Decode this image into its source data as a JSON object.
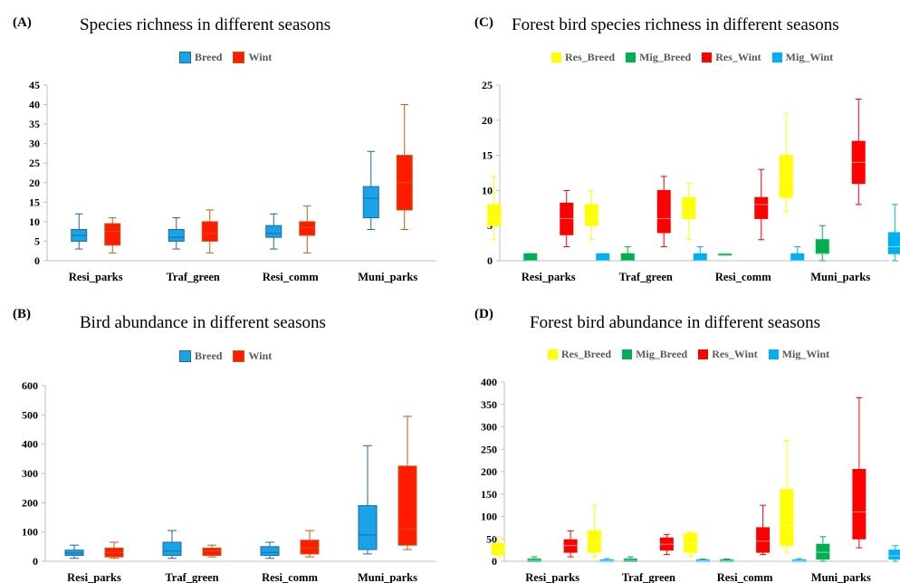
{
  "panels": [
    {
      "letter": "(A)",
      "title": "Species richness in different seasons",
      "legend": [
        {
          "name": "Breed",
          "color": "#1aa3e6"
        },
        {
          "name": "Wint",
          "color": "#ff1a00"
        }
      ]
    },
    {
      "letter": "(C)",
      "title": "Forest bird species richness in different seasons",
      "legend": [
        {
          "name": "Res_Breed",
          "color": "#ffff00"
        },
        {
          "name": "Mig_Breed",
          "color": "#00b050"
        },
        {
          "name": "Res_Wint",
          "color": "#ff0000"
        },
        {
          "name": "Mig_Wint",
          "color": "#00b0f0"
        }
      ]
    },
    {
      "letter": "(B)",
      "title": "Bird abundance in different seasons",
      "legend": [
        {
          "name": "Breed",
          "color": "#1aa3e6"
        },
        {
          "name": "Wint",
          "color": "#ff1a00"
        }
      ]
    },
    {
      "letter": "(D)",
      "title": "Forest bird abundance in different seasons",
      "legend": [
        {
          "name": "Res_Breed",
          "color": "#ffff00"
        },
        {
          "name": "Mig_Breed",
          "color": "#00b050"
        },
        {
          "name": "Res_Wint",
          "color": "#ff0000"
        },
        {
          "name": "Mig_Wint",
          "color": "#00b0f0"
        }
      ]
    }
  ],
  "chart_data": [
    {
      "type": "boxplot",
      "title": "Species richness in different seasons",
      "categories": [
        "Resi_parks",
        "Traf_green",
        "Resi_comm",
        "Muni_parks"
      ],
      "ylim": [
        0,
        45
      ],
      "yticks": [
        0,
        5,
        10,
        15,
        20,
        25,
        30,
        35,
        40,
        45
      ],
      "grid": false,
      "legend_position": "top-center",
      "series": [
        {
          "name": "Breed",
          "color": "#1aa3e6",
          "edge": "#1a6aa8",
          "boxes": [
            {
              "min": 3,
              "q1": 5,
              "median": 6.5,
              "q3": 8,
              "max": 12
            },
            {
              "min": 3,
              "q1": 5,
              "median": 6,
              "q3": 8,
              "max": 11
            },
            {
              "min": 3,
              "q1": 6,
              "median": 7,
              "q3": 9,
              "max": 12
            },
            {
              "min": 8,
              "q1": 11,
              "median": 16,
              "q3": 19,
              "max": 28
            }
          ]
        },
        {
          "name": "Wint",
          "color": "#ff1a00",
          "edge": "#c55a11",
          "boxes": [
            {
              "min": 2,
              "q1": 4,
              "median": 7.5,
              "q3": 9.5,
              "max": 11
            },
            {
              "min": 2,
              "q1": 5,
              "median": 7,
              "q3": 10,
              "max": 13
            },
            {
              "min": 2,
              "q1": 6.5,
              "median": 8.5,
              "q3": 10,
              "max": 14
            },
            {
              "min": 8,
              "q1": 13,
              "median": 20,
              "q3": 27,
              "max": 40
            }
          ]
        }
      ]
    },
    {
      "type": "boxplot",
      "title": "Forest bird species richness in different seasons",
      "categories": [
        "Resi_parks",
        "Traf_green",
        "Resi_comm",
        "Muni_parks"
      ],
      "ylim": [
        0,
        25
      ],
      "yticks": [
        0,
        5,
        10,
        15,
        20,
        25
      ],
      "grid": false,
      "legend_position": "top-center",
      "series": [
        {
          "name": "Res_Breed",
          "color": "#ffff00",
          "edge": "#ffff00",
          "boxes": [
            {
              "min": 3,
              "q1": 5,
              "median": 6,
              "q3": 8,
              "max": 12
            },
            {
              "min": 3,
              "q1": 5,
              "median": 6,
              "q3": 8,
              "max": 10
            },
            {
              "min": 3,
              "q1": 6,
              "median": 7,
              "q3": 9,
              "max": 11
            },
            {
              "min": 7,
              "q1": 9,
              "median": 12,
              "q3": 15,
              "max": 21
            }
          ]
        },
        {
          "name": "Mig_Breed",
          "color": "#00b050",
          "edge": "#00b050",
          "boxes": [
            {
              "min": 0,
              "q1": 0,
              "median": 0,
              "q3": 1,
              "max": 1
            },
            {
              "min": 0,
              "q1": 0,
              "median": 0,
              "q3": 1,
              "max": 2
            },
            {
              "min": 1,
              "q1": 1,
              "median": 1,
              "q3": 1,
              "max": 1
            },
            {
              "min": 0,
              "q1": 1,
              "median": 1,
              "q3": 3,
              "max": 5
            }
          ]
        },
        {
          "name": "Res_Wint",
          "color": "#ff0000",
          "edge": "#ff0000",
          "boxes": [
            {
              "min": 2,
              "q1": 3.7,
              "median": 6,
              "q3": 8.2,
              "max": 10
            },
            {
              "min": 2,
              "q1": 4,
              "median": 6,
              "q3": 10,
              "max": 12
            },
            {
              "min": 3,
              "q1": 6,
              "median": 8,
              "q3": 9,
              "max": 13
            },
            {
              "min": 8,
              "q1": 11,
              "median": 14,
              "q3": 17,
              "max": 23
            }
          ]
        },
        {
          "name": "Mig_Wint",
          "color": "#00b0f0",
          "edge": "#00b0f0",
          "boxes": [
            {
              "min": 0,
              "q1": 0,
              "median": 0,
              "q3": 1,
              "max": 1
            },
            {
              "min": 0,
              "q1": 0,
              "median": 0,
              "q3": 1,
              "max": 2
            },
            {
              "min": 0,
              "q1": 0,
              "median": 0,
              "q3": 1,
              "max": 2
            },
            {
              "min": 0,
              "q1": 1,
              "median": 2,
              "q3": 4,
              "max": 8
            }
          ]
        }
      ]
    },
    {
      "type": "boxplot",
      "title": "Bird abundance in different seasons",
      "categories": [
        "Resi_parks",
        "Traf_green",
        "Resi_comm",
        "Muni_parks"
      ],
      "ylim": [
        0,
        600
      ],
      "yticks": [
        0,
        100,
        200,
        300,
        400,
        500,
        600
      ],
      "grid": false,
      "legend_position": "top-center",
      "series": [
        {
          "name": "Breed",
          "color": "#1aa3e6",
          "edge": "#1a6aa8",
          "boxes": [
            {
              "min": 10,
              "q1": 20,
              "median": 28,
              "q3": 38,
              "max": 55
            },
            {
              "min": 10,
              "q1": 20,
              "median": 35,
              "q3": 65,
              "max": 105
            },
            {
              "min": 10,
              "q1": 20,
              "median": 30,
              "q3": 50,
              "max": 65
            },
            {
              "min": 25,
              "q1": 40,
              "median": 90,
              "q3": 190,
              "max": 395
            }
          ]
        },
        {
          "name": "Wint",
          "color": "#ff1a00",
          "edge": "#c55a11",
          "boxes": [
            {
              "min": 10,
              "q1": 15,
              "median": 30,
              "q3": 45,
              "max": 65
            },
            {
              "min": 15,
              "q1": 20,
              "median": 35,
              "q3": 45,
              "max": 55
            },
            {
              "min": 15,
              "q1": 25,
              "median": 45,
              "q3": 72,
              "max": 105
            },
            {
              "min": 40,
              "q1": 55,
              "median": 110,
              "q3": 325,
              "max": 495
            }
          ]
        }
      ]
    },
    {
      "type": "boxplot",
      "title": "Forest bird abundance in different seasons",
      "categories": [
        "Resi_parks",
        "Traf_green",
        "Resi_comm",
        "Muni_parks"
      ],
      "ylim": [
        0,
        400
      ],
      "yticks": [
        0,
        50,
        100,
        150,
        200,
        250,
        300,
        350,
        400
      ],
      "grid": false,
      "legend_position": "top-center",
      "series": [
        {
          "name": "Res_Breed",
          "color": "#ffff00",
          "edge": "#ffff00",
          "boxes": [
            {
              "min": 10,
              "q1": 15,
              "median": 25,
              "q3": 40,
              "max": 55
            },
            {
              "min": 10,
              "q1": 20,
              "median": 40,
              "q3": 68,
              "max": 125
            },
            {
              "min": 10,
              "q1": 20,
              "median": 40,
              "q3": 62,
              "max": 65
            },
            {
              "min": 20,
              "q1": 35,
              "median": 80,
              "q3": 160,
              "max": 270
            }
          ]
        },
        {
          "name": "Mig_Breed",
          "color": "#00b050",
          "edge": "#00b050",
          "boxes": [
            {
              "min": 0,
              "q1": 0,
              "median": 2,
              "q3": 5,
              "max": 10
            },
            {
              "min": 0,
              "q1": 0,
              "median": 2,
              "q3": 5,
              "max": 10
            },
            {
              "min": 0,
              "q1": 0,
              "median": 1,
              "q3": 3,
              "max": 5
            },
            {
              "min": 0,
              "q1": 5,
              "median": 20,
              "q3": 38,
              "max": 55
            }
          ]
        },
        {
          "name": "Res_Wint",
          "color": "#ff0000",
          "edge": "#ff0000",
          "boxes": [
            {
              "min": 10,
              "q1": 20,
              "median": 35,
              "q3": 48,
              "max": 68
            },
            {
              "min": 15,
              "q1": 25,
              "median": 38,
              "q3": 52,
              "max": 60
            },
            {
              "min": 15,
              "q1": 20,
              "median": 45,
              "q3": 75,
              "max": 125
            },
            {
              "min": 30,
              "q1": 50,
              "median": 110,
              "q3": 205,
              "max": 365
            }
          ]
        },
        {
          "name": "Mig_Wint",
          "color": "#00b0f0",
          "edge": "#00b0f0",
          "boxes": [
            {
              "min": 0,
              "q1": 0,
              "median": 1,
              "q3": 3,
              "max": 6
            },
            {
              "min": 0,
              "q1": 0,
              "median": 1,
              "q3": 3,
              "max": 5
            },
            {
              "min": 0,
              "q1": 0,
              "median": 1,
              "q3": 3,
              "max": 6
            },
            {
              "min": 0,
              "q1": 5,
              "median": 12,
              "q3": 25,
              "max": 35
            }
          ]
        }
      ]
    }
  ]
}
